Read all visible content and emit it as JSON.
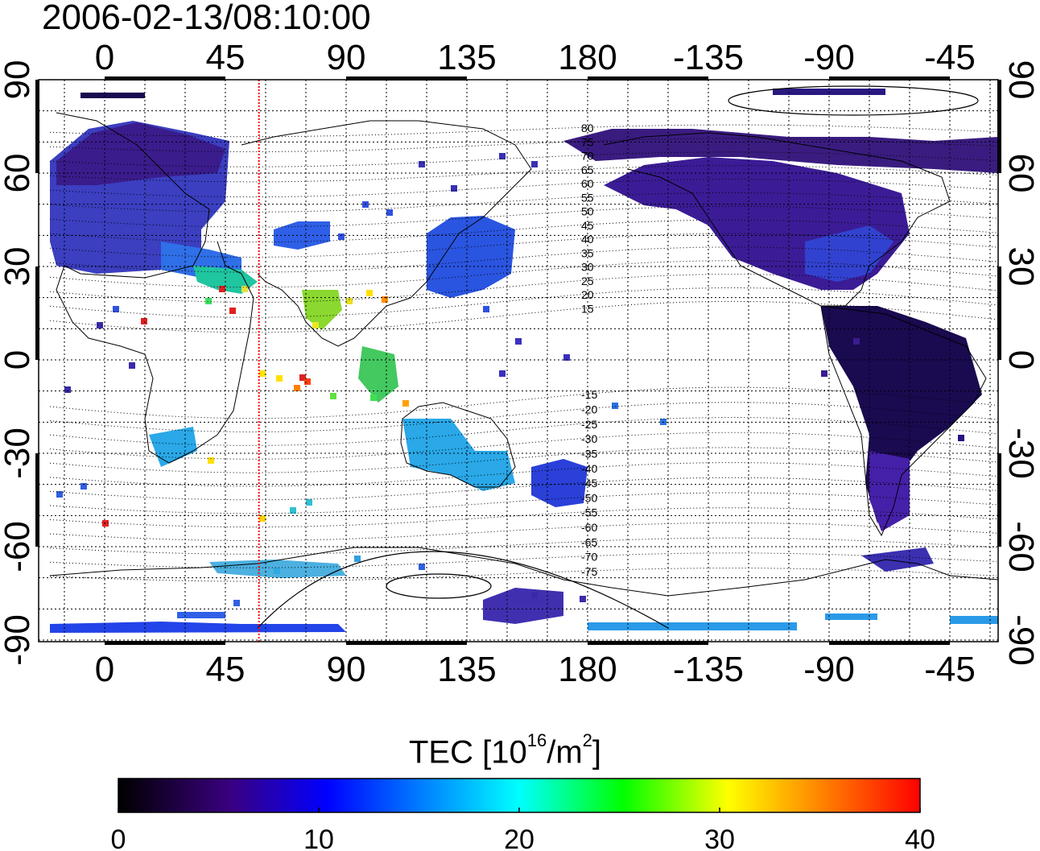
{
  "title": "2006-02-13/08:10:00",
  "map": {
    "lon_ticks_top": [
      "0",
      "45",
      "90",
      "135",
      "180",
      "-135",
      "-90",
      "-45"
    ],
    "lon_ticks_bottom": [
      "0",
      "45",
      "90",
      "135",
      "180",
      "-135",
      "-90",
      "-45"
    ],
    "lat_ticks_left": [
      "90",
      "60",
      "30",
      "0",
      "-30",
      "-60",
      "-90"
    ],
    "lat_ticks_right": [
      "90",
      "60",
      "30",
      "0",
      "-30",
      "-60",
      "-90"
    ],
    "contour_labels": [
      "80",
      "75",
      "70",
      "65",
      "60",
      "55",
      "50",
      "45",
      "40",
      "35",
      "30",
      "25",
      "20",
      "15",
      "-15",
      "-20",
      "-25",
      "-30",
      "-35",
      "-40",
      "-45",
      "-50",
      "-55",
      "-60",
      "-65",
      "-70",
      "-75"
    ],
    "subsolar_longitude": 57.5,
    "colors": {
      "noon_line": "#ff0000",
      "grid": "#000000"
    }
  },
  "colorbar": {
    "label_main": "TEC  [10",
    "label_exp": "16",
    "label_unit": "/m",
    "label_unit_exp": "2",
    "label_close": "]",
    "min": 0,
    "max": 40,
    "ticks": [
      "0",
      "10",
      "20",
      "30",
      "40"
    ],
    "colormap_stops": [
      "#000000",
      "#3a0080",
      "#0000ff",
      "#00ffff",
      "#00ff00",
      "#ffff00",
      "#ff8000",
      "#ff0000"
    ]
  }
}
